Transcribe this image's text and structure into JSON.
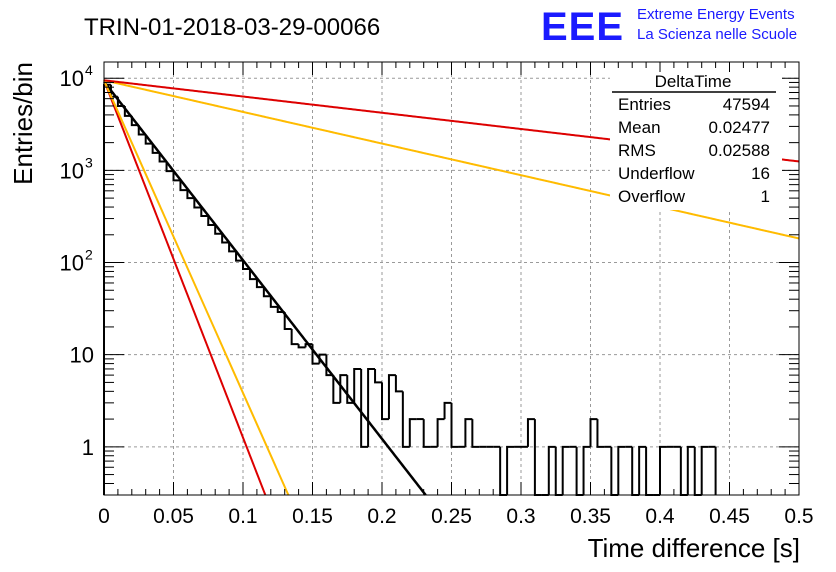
{
  "title": "TRIN-01-2018-03-29-00066",
  "logo": {
    "mark": "EEE",
    "line1": "Extreme Energy Events",
    "line2": "La Scienza nelle Scuole",
    "color": "#1a1aff"
  },
  "stats": {
    "title": "DeltaTime",
    "rows": [
      {
        "label": "Entries",
        "value": "47594"
      },
      {
        "label": "Mean",
        "value": "0.02477"
      },
      {
        "label": "RMS",
        "value": "0.02588"
      },
      {
        "label": "Underflow",
        "value": "16"
      },
      {
        "label": "Overflow",
        "value": "1"
      }
    ]
  },
  "chart_data": {
    "type": "line",
    "title": "TRIN-01-2018-03-29-00066",
    "xlabel": "Time difference [s]",
    "ylabel": "Entries/bin",
    "xlim": [
      0,
      0.5
    ],
    "ylim": [
      0.3,
      15000
    ],
    "yscale": "log",
    "grid": true,
    "legend": "top-right",
    "xticks": [
      "0",
      "0.05",
      "0.1",
      "0.15",
      "0.2",
      "0.25",
      "0.3",
      "0.35",
      "0.4",
      "0.45",
      "0.5"
    ],
    "yticks": [
      {
        "value": 1,
        "label": "1",
        "sup": ""
      },
      {
        "value": 10,
        "label": "10",
        "sup": ""
      },
      {
        "value": 100,
        "label": "10",
        "sup": "2"
      },
      {
        "value": 1000,
        "label": "10",
        "sup": "3"
      },
      {
        "value": 10000,
        "label": "10",
        "sup": "4"
      }
    ],
    "histogram": {
      "name": "DeltaTime",
      "color": "#000000",
      "bin_width": 0.005,
      "bins": [
        {
          "x0": 0.0,
          "y": 8500
        },
        {
          "x0": 0.005,
          "y": 6300
        },
        {
          "x0": 0.01,
          "y": 5000
        },
        {
          "x0": 0.015,
          "y": 3900
        },
        {
          "x0": 0.02,
          "y": 3100
        },
        {
          "x0": 0.025,
          "y": 2450
        },
        {
          "x0": 0.03,
          "y": 1950
        },
        {
          "x0": 0.035,
          "y": 1550
        },
        {
          "x0": 0.04,
          "y": 1250
        },
        {
          "x0": 0.045,
          "y": 980
        },
        {
          "x0": 0.05,
          "y": 780
        },
        {
          "x0": 0.055,
          "y": 610
        },
        {
          "x0": 0.06,
          "y": 500
        },
        {
          "x0": 0.065,
          "y": 395
        },
        {
          "x0": 0.07,
          "y": 320
        },
        {
          "x0": 0.075,
          "y": 255
        },
        {
          "x0": 0.08,
          "y": 205
        },
        {
          "x0": 0.085,
          "y": 165
        },
        {
          "x0": 0.09,
          "y": 132
        },
        {
          "x0": 0.095,
          "y": 105
        },
        {
          "x0": 0.1,
          "y": 85
        },
        {
          "x0": 0.105,
          "y": 66
        },
        {
          "x0": 0.11,
          "y": 54
        },
        {
          "x0": 0.115,
          "y": 43
        },
        {
          "x0": 0.12,
          "y": 33
        },
        {
          "x0": 0.125,
          "y": 29
        },
        {
          "x0": 0.13,
          "y": 19
        },
        {
          "x0": 0.135,
          "y": 13
        },
        {
          "x0": 0.14,
          "y": 12
        },
        {
          "x0": 0.145,
          "y": 13
        },
        {
          "x0": 0.15,
          "y": 8
        },
        {
          "x0": 0.155,
          "y": 10
        },
        {
          "x0": 0.16,
          "y": 6
        },
        {
          "x0": 0.165,
          "y": 3
        },
        {
          "x0": 0.17,
          "y": 6
        },
        {
          "x0": 0.175,
          "y": 3
        },
        {
          "x0": 0.18,
          "y": 7
        },
        {
          "x0": 0.185,
          "y": 1
        },
        {
          "x0": 0.19,
          "y": 7
        },
        {
          "x0": 0.195,
          "y": 5
        },
        {
          "x0": 0.2,
          "y": 2
        },
        {
          "x0": 0.205,
          "y": 6
        },
        {
          "x0": 0.21,
          "y": 4
        },
        {
          "x0": 0.215,
          "y": 1
        },
        {
          "x0": 0.22,
          "y": 2
        },
        {
          "x0": 0.225,
          "y": 2
        },
        {
          "x0": 0.23,
          "y": 1
        },
        {
          "x0": 0.235,
          "y": 1
        },
        {
          "x0": 0.24,
          "y": 2
        },
        {
          "x0": 0.245,
          "y": 3
        },
        {
          "x0": 0.25,
          "y": 1
        },
        {
          "x0": 0.255,
          "y": 1
        },
        {
          "x0": 0.26,
          "y": 2
        },
        {
          "x0": 0.265,
          "y": 1
        },
        {
          "x0": 0.27,
          "y": 1
        },
        {
          "x0": 0.275,
          "y": 1
        },
        {
          "x0": 0.28,
          "y": 1
        },
        {
          "x0": 0.285,
          "y": 0
        },
        {
          "x0": 0.29,
          "y": 1
        },
        {
          "x0": 0.295,
          "y": 1
        },
        {
          "x0": 0.3,
          "y": 1
        },
        {
          "x0": 0.305,
          "y": 2
        },
        {
          "x0": 0.31,
          "y": 0
        },
        {
          "x0": 0.315,
          "y": 0
        },
        {
          "x0": 0.32,
          "y": 1
        },
        {
          "x0": 0.325,
          "y": 0
        },
        {
          "x0": 0.33,
          "y": 1
        },
        {
          "x0": 0.335,
          "y": 1
        },
        {
          "x0": 0.34,
          "y": 0
        },
        {
          "x0": 0.345,
          "y": 1
        },
        {
          "x0": 0.35,
          "y": 2
        },
        {
          "x0": 0.355,
          "y": 1
        },
        {
          "x0": 0.36,
          "y": 1
        },
        {
          "x0": 0.365,
          "y": 0
        },
        {
          "x0": 0.37,
          "y": 1
        },
        {
          "x0": 0.375,
          "y": 1
        },
        {
          "x0": 0.38,
          "y": 0
        },
        {
          "x0": 0.385,
          "y": 1
        },
        {
          "x0": 0.39,
          "y": 0
        },
        {
          "x0": 0.395,
          "y": 0
        },
        {
          "x0": 0.4,
          "y": 1
        },
        {
          "x0": 0.405,
          "y": 1
        },
        {
          "x0": 0.41,
          "y": 1
        },
        {
          "x0": 0.415,
          "y": 0
        },
        {
          "x0": 0.42,
          "y": 1
        },
        {
          "x0": 0.425,
          "y": 0
        },
        {
          "x0": 0.43,
          "y": 1
        },
        {
          "x0": 0.435,
          "y": 1
        }
      ]
    },
    "series": [
      {
        "color": "#000000",
        "y0": 9200,
        "tau": 0.0224
      },
      {
        "color": "#dd0000",
        "y0": 9500,
        "tau": 0.0112
      },
      {
        "color": "#ffbb00",
        "y0": 9500,
        "tau": 0.0128
      },
      {
        "color": "#ffbb00",
        "y0": 9500,
        "tau": 0.1265
      },
      {
        "color": "#dd0000",
        "y0": 9500,
        "tau": 0.2465
      }
    ]
  }
}
